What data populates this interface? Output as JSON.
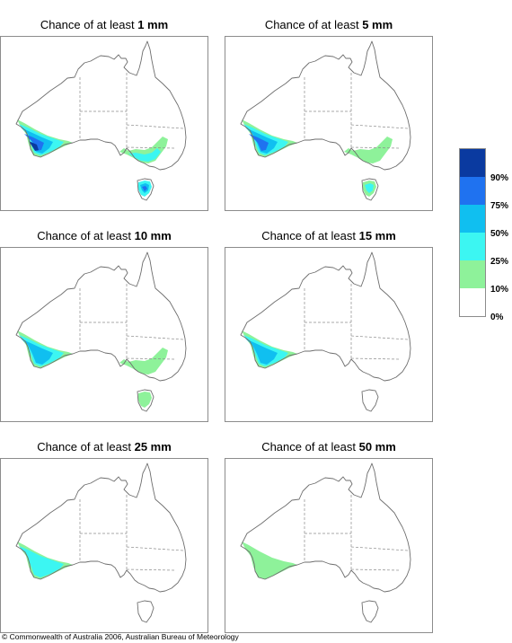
{
  "panels": [
    {
      "prefix": "Chance of at least ",
      "amount": "1 mm",
      "bands": [
        "green",
        "cyan",
        "light-blue",
        "blue",
        "dark-blue"
      ],
      "east": [
        "green",
        "cyan"
      ],
      "tas": [
        "cyan",
        "light-blue",
        "blue"
      ]
    },
    {
      "prefix": "Chance of at least ",
      "amount": "5 mm",
      "bands": [
        "green",
        "cyan",
        "light-blue",
        "blue"
      ],
      "east": [
        "green"
      ],
      "tas": [
        "green",
        "cyan"
      ]
    },
    {
      "prefix": "Chance of at least ",
      "amount": "10 mm",
      "bands": [
        "green",
        "cyan",
        "light-blue"
      ],
      "east": [
        "green"
      ],
      "tas": [
        "green"
      ]
    },
    {
      "prefix": "Chance of at least ",
      "amount": "15 mm",
      "bands": [
        "green",
        "cyan",
        "light-blue"
      ],
      "east": [],
      "tas": []
    },
    {
      "prefix": "Chance of at least ",
      "amount": "25 mm",
      "bands": [
        "green",
        "cyan"
      ],
      "east": [],
      "tas": []
    },
    {
      "prefix": "Chance of at least ",
      "amount": "50 mm",
      "bands": [
        "green"
      ],
      "east": [],
      "tas": []
    }
  ],
  "legend": {
    "colors": [
      {
        "key": "dark-blue",
        "hex": "#0a3aa0"
      },
      {
        "key": "blue",
        "hex": "#1f72f0"
      },
      {
        "key": "light-blue",
        "hex": "#10bff0"
      },
      {
        "key": "cyan",
        "hex": "#3cf6f2"
      },
      {
        "key": "green",
        "hex": "#8ef29a"
      },
      {
        "key": "white",
        "hex": "#ffffff"
      }
    ],
    "labels": [
      "90%",
      "75%",
      "50%",
      "25%",
      "10%",
      "0%"
    ]
  },
  "copyright": "© Commonwealth of Australia 2006, Australian Bureau of Meteorology"
}
